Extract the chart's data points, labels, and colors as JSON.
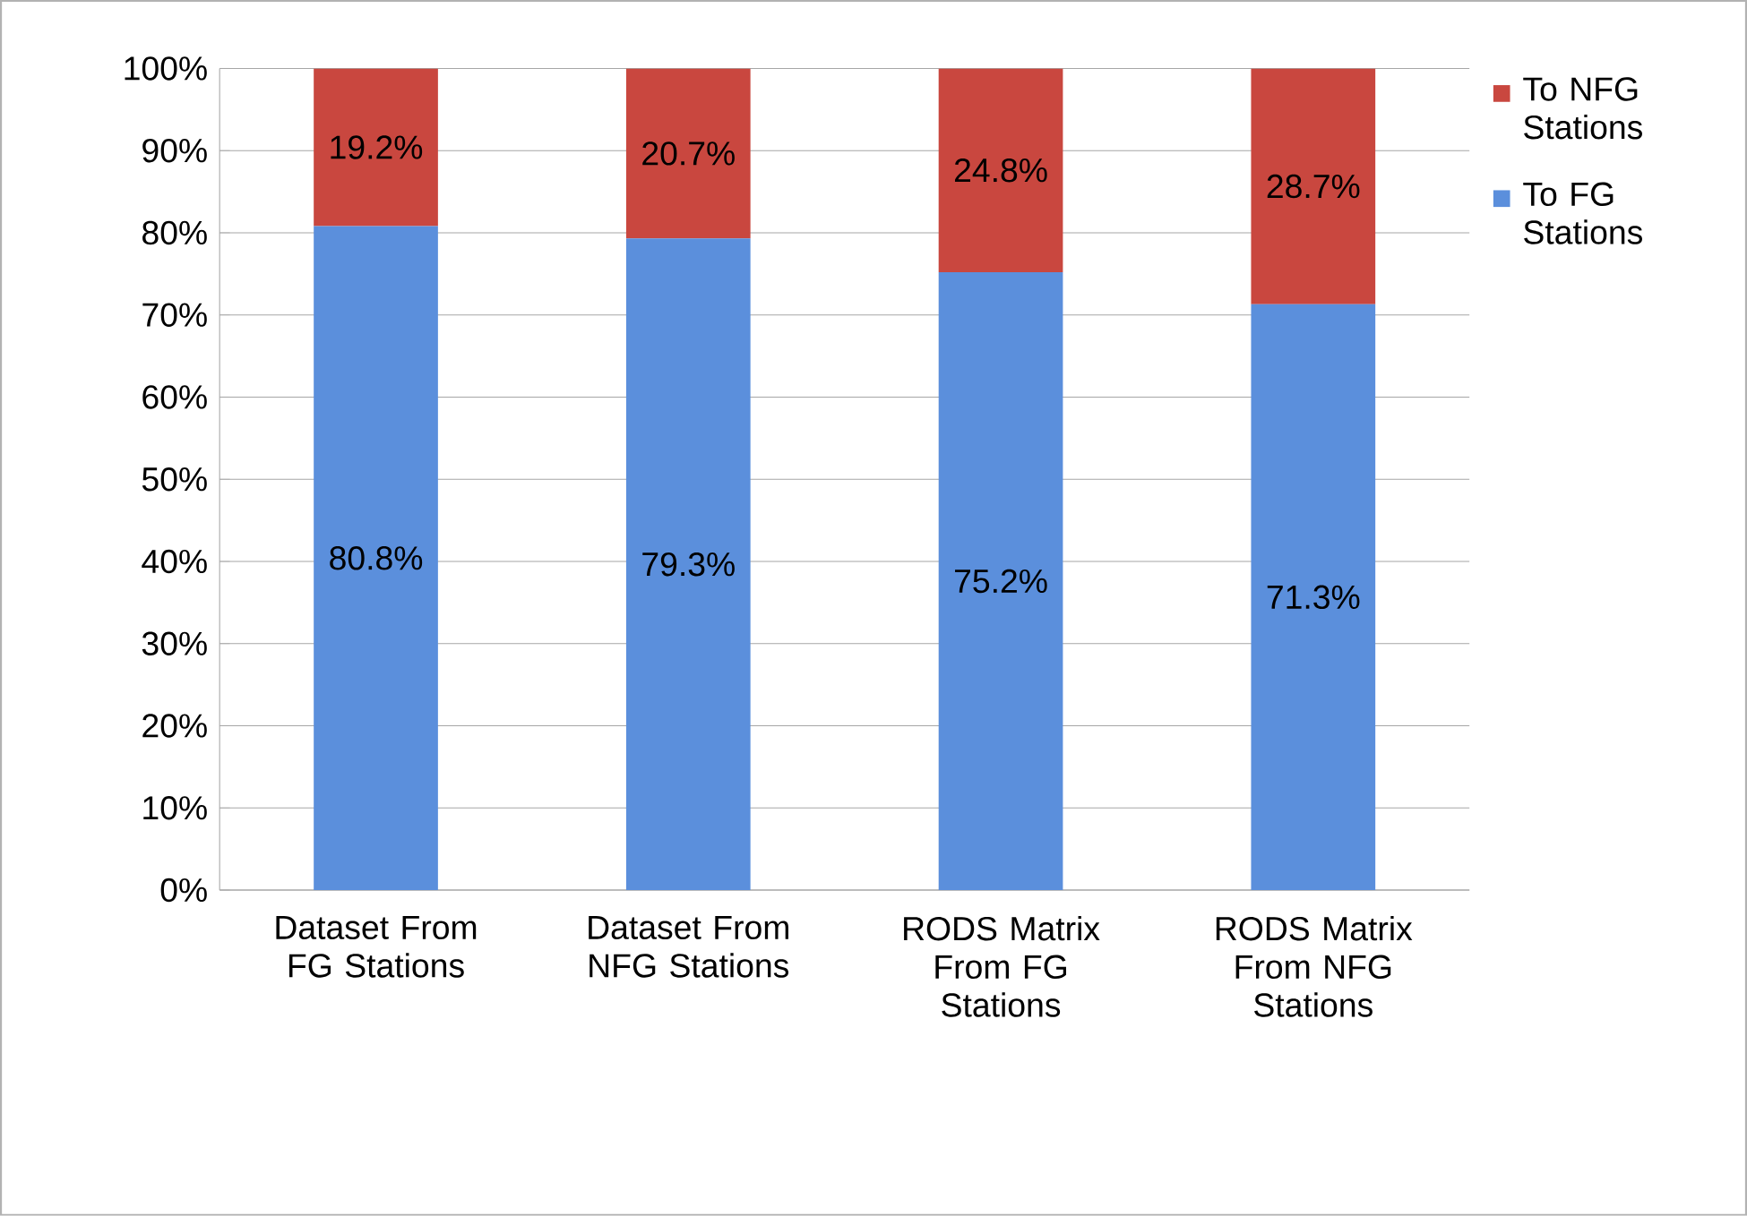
{
  "chart_data": {
    "type": "bar",
    "stacked": true,
    "categories": [
      "Dataset From FG Stations",
      "Dataset From NFG Stations",
      "RODS Matrix From FG Stations",
      "RODS Matrix From NFG Stations"
    ],
    "series": [
      {
        "name": "To FG Stations",
        "color": "#5b8fdc",
        "values": [
          80.8,
          79.3,
          75.2,
          71.3
        ],
        "value_labels": [
          "80.8%",
          "79.3%",
          "75.2%",
          "71.3%"
        ]
      },
      {
        "name": "To NFG Stations",
        "color": "#c9473f",
        "values": [
          19.2,
          20.7,
          24.8,
          28.7
        ],
        "value_labels": [
          "19.2%",
          "20.7%",
          "24.8%",
          "28.7%"
        ]
      }
    ],
    "ylim": [
      0,
      100
    ],
    "yticks": [
      {
        "value": 0,
        "label": "0%"
      },
      {
        "value": 10,
        "label": "10%"
      },
      {
        "value": 20,
        "label": "20%"
      },
      {
        "value": 30,
        "label": "30%"
      },
      {
        "value": 40,
        "label": "40%"
      },
      {
        "value": 50,
        "label": "50%"
      },
      {
        "value": 60,
        "label": "60%"
      },
      {
        "value": 70,
        "label": "70%"
      },
      {
        "value": 80,
        "label": "80%"
      },
      {
        "value": 90,
        "label": "90%"
      },
      {
        "value": 100,
        "label": "100%"
      }
    ],
    "grid": "y",
    "legend": "right"
  }
}
